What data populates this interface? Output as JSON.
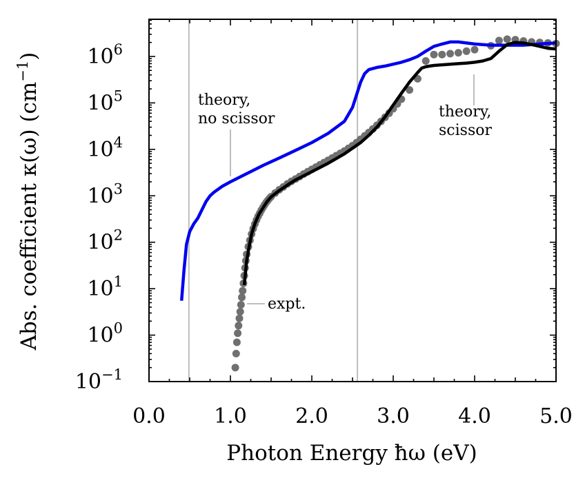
{
  "chart_data": {
    "type": "line",
    "xlabel": "Photon Energy ħω (eV)",
    "ylabel": "Abs. coefficient κ(ω) (cm",
    "ylabel_sup": "−1",
    "ylabel_close": ")",
    "xlim": [
      0.0,
      5.0
    ],
    "ylim_log10": [
      -1,
      6.8
    ],
    "yscale": "log",
    "x_ticks": [
      0.0,
      1.0,
      2.0,
      3.0,
      4.0,
      5.0
    ],
    "x_tick_labels": [
      "0.0",
      "1.0",
      "2.0",
      "3.0",
      "4.0",
      "5.0"
    ],
    "y_ticks_log10": [
      -1,
      0,
      1,
      2,
      3,
      4,
      5,
      6
    ],
    "y_tick_labels": [
      {
        "base": "10",
        "exp": "−1"
      },
      {
        "base": "10",
        "exp": "0"
      },
      {
        "base": "10",
        "exp": "1"
      },
      {
        "base": "10",
        "exp": "2"
      },
      {
        "base": "10",
        "exp": "3"
      },
      {
        "base": "10",
        "exp": "4"
      },
      {
        "base": "10",
        "exp": "5"
      },
      {
        "base": "10",
        "exp": "6"
      }
    ],
    "vertical_lines": [
      0.49,
      2.56
    ],
    "series": [
      {
        "name": "theory, no scissor",
        "color": "#0000ee",
        "style": "line",
        "x": [
          0.4,
          0.43,
          0.46,
          0.5,
          0.55,
          0.6,
          0.65,
          0.7,
          0.75,
          0.8,
          0.9,
          1.0,
          1.2,
          1.4,
          1.6,
          1.8,
          2.0,
          2.2,
          2.4,
          2.5,
          2.55,
          2.6,
          2.65,
          2.7,
          2.8,
          2.9,
          3.0,
          3.1,
          3.2,
          3.3,
          3.4,
          3.5,
          3.6,
          3.7,
          3.8,
          3.9,
          4.0,
          4.2,
          4.4,
          4.6,
          4.8,
          5.0
        ],
        "y": [
          5.5,
          25,
          90,
          170,
          250,
          330,
          500,
          750,
          1000,
          1200,
          1600,
          2000,
          3000,
          4500,
          6500,
          9500,
          14000,
          22000,
          40000,
          80000,
          150000,
          280000,
          430000,
          520000,
          580000,
          620000,
          680000,
          750000,
          850000,
          1000000,
          1300000,
          1650000,
          1850000,
          2050000,
          2050000,
          1950000,
          1850000,
          1750000,
          1750000,
          1750000,
          1850000,
          1950000
        ]
      },
      {
        "name": "theory, scissor",
        "color": "#000000",
        "style": "line",
        "x": [
          1.17,
          1.2,
          1.23,
          1.26,
          1.3,
          1.35,
          1.4,
          1.45,
          1.5,
          1.6,
          1.7,
          1.8,
          2.0,
          2.2,
          2.4,
          2.6,
          2.7,
          2.8,
          2.9,
          3.0,
          3.1,
          3.2,
          3.3,
          3.35,
          3.4,
          3.45,
          3.5,
          3.6,
          3.7,
          3.8,
          3.9,
          4.0,
          4.1,
          4.2,
          4.3,
          4.4,
          4.5,
          4.6,
          4.7,
          4.8,
          4.9,
          5.0
        ],
        "y": [
          12,
          40,
          80,
          150,
          250,
          400,
          550,
          750,
          950,
          1300,
          1700,
          2200,
          3300,
          5000,
          8000,
          14000,
          20000,
          30000,
          50000,
          90000,
          160000,
          280000,
          450000,
          560000,
          600000,
          620000,
          640000,
          660000,
          680000,
          700000,
          720000,
          750000,
          800000,
          900000,
          1300000,
          1800000,
          2000000,
          1950000,
          1800000,
          1650000,
          1500000,
          1450000
        ]
      },
      {
        "name": "expt.",
        "color": "#707070",
        "style": "scatter",
        "x": [
          1.06,
          1.07,
          1.08,
          1.09,
          1.1,
          1.11,
          1.12,
          1.13,
          1.14,
          1.15,
          1.16,
          1.17,
          1.18,
          1.19,
          1.2,
          1.22,
          1.24,
          1.26,
          1.28,
          1.3,
          1.32,
          1.34,
          1.36,
          1.38,
          1.4,
          1.42,
          1.44,
          1.46,
          1.48,
          1.5,
          1.55,
          1.6,
          1.65,
          1.7,
          1.75,
          1.8,
          1.85,
          1.9,
          1.95,
          2.0,
          2.05,
          2.1,
          2.15,
          2.2,
          2.25,
          2.3,
          2.35,
          2.4,
          2.45,
          2.5,
          2.55,
          2.6,
          2.65,
          2.7,
          2.75,
          2.8,
          2.85,
          2.9,
          2.95,
          3.0,
          3.05,
          3.1,
          3.2,
          3.3,
          3.4,
          3.5,
          3.6,
          3.7,
          3.8,
          3.9,
          4.0,
          4.2,
          4.3,
          4.4,
          4.5,
          4.6,
          4.7,
          4.8,
          4.9,
          5.0
        ],
        "y": [
          0.2,
          0.4,
          0.7,
          1.1,
          1.6,
          2.3,
          3.2,
          4.5,
          6.5,
          9,
          13,
          19,
          28,
          40,
          55,
          80,
          110,
          150,
          195,
          245,
          300,
          360,
          420,
          490,
          560,
          640,
          720,
          800,
          880,
          960,
          1150,
          1350,
          1550,
          1800,
          2050,
          2300,
          2600,
          2950,
          3300,
          3700,
          4150,
          4650,
          5200,
          5800,
          6500,
          7300,
          8200,
          9200,
          10500,
          12000,
          14000,
          16500,
          19500,
          23000,
          27500,
          33000,
          40000,
          49000,
          60000,
          75000,
          95000,
          120000,
          190000,
          330000,
          800000,
          1100000,
          1100000,
          1150000,
          1200000,
          1300000,
          1400000,
          1700000,
          2200000,
          2350000,
          2300000,
          2150000,
          2050000,
          2000000,
          1950000,
          1900000
        ]
      }
    ],
    "annotations": [
      {
        "lines": [
          "theory,",
          "no scissor"
        ]
      },
      {
        "lines": [
          "theory,",
          "scissor"
        ]
      },
      {
        "lines": [
          "expt."
        ]
      }
    ]
  }
}
